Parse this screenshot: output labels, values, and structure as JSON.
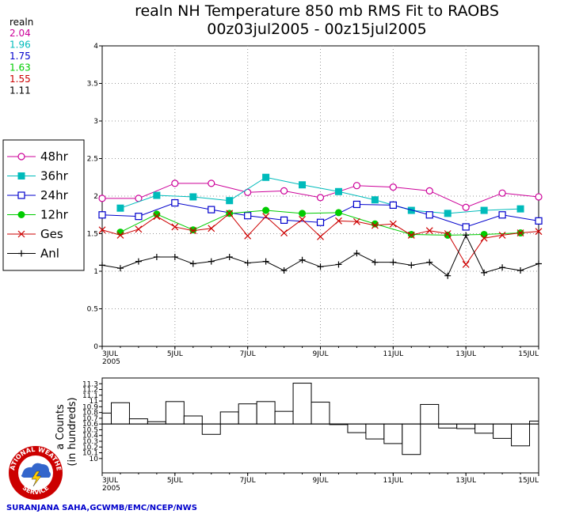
{
  "chart_data": [
    {
      "type": "line",
      "title": "realn NH Temperature 850 mb RMS Fit to RAOBS",
      "subtitle": "00z03jul2005 - 00z15jul2005",
      "ylim": [
        0,
        4
      ],
      "yticks": [
        "0",
        "0.5",
        "1",
        "1.5",
        "2",
        "2.5",
        "3",
        "3.5",
        "4"
      ],
      "xrange": [
        0,
        24
      ],
      "xticks": [
        {
          "x": 0,
          "label": "3JUL",
          "sub": "2005"
        },
        {
          "x": 4,
          "label": "5JUL",
          "sub": ""
        },
        {
          "x": 8,
          "label": "7JUL",
          "sub": ""
        },
        {
          "x": 12,
          "label": "9JUL",
          "sub": ""
        },
        {
          "x": 16,
          "label": "11JUL",
          "sub": ""
        },
        {
          "x": 20,
          "label": "13JUL",
          "sub": ""
        },
        {
          "x": 24,
          "label": "15JUL",
          "sub": ""
        }
      ],
      "grid": true,
      "means_title": "realn",
      "series": [
        {
          "name": "48hr",
          "mean": "2.04",
          "color": "#cc0099",
          "marker": "circle-open",
          "x": [
            0,
            2,
            4,
            6,
            8,
            10,
            12,
            14,
            16,
            18,
            20,
            22,
            24
          ],
          "values": [
            1.97,
            1.97,
            2.17,
            2.17,
            2.05,
            2.07,
            1.98,
            2.14,
            2.12,
            2.07,
            1.85,
            2.04,
            1.99
          ]
        },
        {
          "name": "36hr",
          "mean": "1.96",
          "color": "#00bbbb",
          "marker": "square-filled",
          "x": [
            1,
            3,
            5,
            7,
            9,
            11,
            13,
            15,
            17,
            19,
            21,
            23
          ],
          "values": [
            1.84,
            2.01,
            1.99,
            1.94,
            2.25,
            2.15,
            2.06,
            1.95,
            1.81,
            1.77,
            1.81,
            1.83
          ]
        },
        {
          "name": "24hr",
          "mean": "1.75",
          "color": "#0000cc",
          "marker": "square-open",
          "x": [
            0,
            2,
            4,
            6,
            8,
            10,
            12,
            14,
            16,
            18,
            20,
            22,
            24
          ],
          "values": [
            1.75,
            1.73,
            1.91,
            1.82,
            1.74,
            1.68,
            1.65,
            1.89,
            1.88,
            1.75,
            1.59,
            1.75,
            1.67
          ]
        },
        {
          "name": "12hr",
          "mean": "1.63",
          "color": "#00cc00",
          "marker": "circle-filled",
          "x": [
            1,
            3,
            5,
            7,
            9,
            11,
            13,
            15,
            17,
            19,
            21,
            23
          ],
          "values": [
            1.52,
            1.76,
            1.55,
            1.77,
            1.81,
            1.77,
            1.78,
            1.63,
            1.49,
            1.48,
            1.49,
            1.51
          ]
        },
        {
          "name": "Ges",
          "mean": "1.55",
          "color": "#cc0000",
          "marker": "x",
          "x": [
            0,
            1,
            2,
            3,
            4,
            5,
            6,
            7,
            8,
            9,
            10,
            11,
            12,
            13,
            14,
            15,
            16,
            17,
            18,
            19,
            20,
            21,
            22,
            23,
            24
          ],
          "values": [
            1.55,
            1.48,
            1.56,
            1.73,
            1.59,
            1.54,
            1.57,
            1.77,
            1.47,
            1.73,
            1.51,
            1.69,
            1.46,
            1.67,
            1.66,
            1.61,
            1.63,
            1.48,
            1.54,
            1.5,
            1.09,
            1.44,
            1.48,
            1.51,
            1.53
          ]
        },
        {
          "name": "Anl",
          "mean": "1.11",
          "color": "#000000",
          "marker": "plus",
          "x": [
            0,
            1,
            2,
            3,
            4,
            5,
            6,
            7,
            8,
            9,
            10,
            11,
            12,
            13,
            14,
            15,
            16,
            17,
            18,
            19,
            20,
            21,
            22,
            23,
            24
          ],
          "values": [
            1.08,
            1.04,
            1.13,
            1.19,
            1.19,
            1.1,
            1.13,
            1.19,
            1.11,
            1.13,
            1.01,
            1.15,
            1.06,
            1.09,
            1.24,
            1.12,
            1.12,
            1.08,
            1.12,
            0.94,
            1.48,
            0.98,
            1.05,
            1.01,
            1.1
          ]
        }
      ]
    },
    {
      "type": "bar",
      "ylabel": "Data Counts (in hundreds)",
      "ylabel_visible": "a Counts",
      "ylabel_line2": "(in hundreds)",
      "ylim": [
        9.75,
        11.4
      ],
      "yticks": [
        "10",
        "10.1",
        "10.2",
        "10.3",
        "10.4",
        "10.5",
        "10.6",
        "10.7",
        "10.8",
        "10.9",
        "11",
        "11.1",
        "11.2",
        "11.3"
      ],
      "baseline": 10.6,
      "x": [
        0,
        1,
        2,
        3,
        4,
        5,
        6,
        7,
        8,
        9,
        10,
        11,
        12,
        13,
        14,
        15,
        16,
        17,
        18,
        19,
        20,
        21,
        22,
        23,
        24
      ],
      "values": [
        10.79,
        10.97,
        10.69,
        10.64,
        10.99,
        10.74,
        10.42,
        10.81,
        10.95,
        10.99,
        10.82,
        11.31,
        10.98,
        10.59,
        10.45,
        10.34,
        10.26,
        10.07,
        10.94,
        10.53,
        10.52,
        10.44,
        10.35,
        10.22,
        10.65
      ]
    }
  ],
  "credit": "SURANJANA SAHA,GCWMB/EMC/NCEP/NWS",
  "logo": {
    "text_top": "NATIONAL WEATHER",
    "text_bottom": "SERVICE"
  }
}
